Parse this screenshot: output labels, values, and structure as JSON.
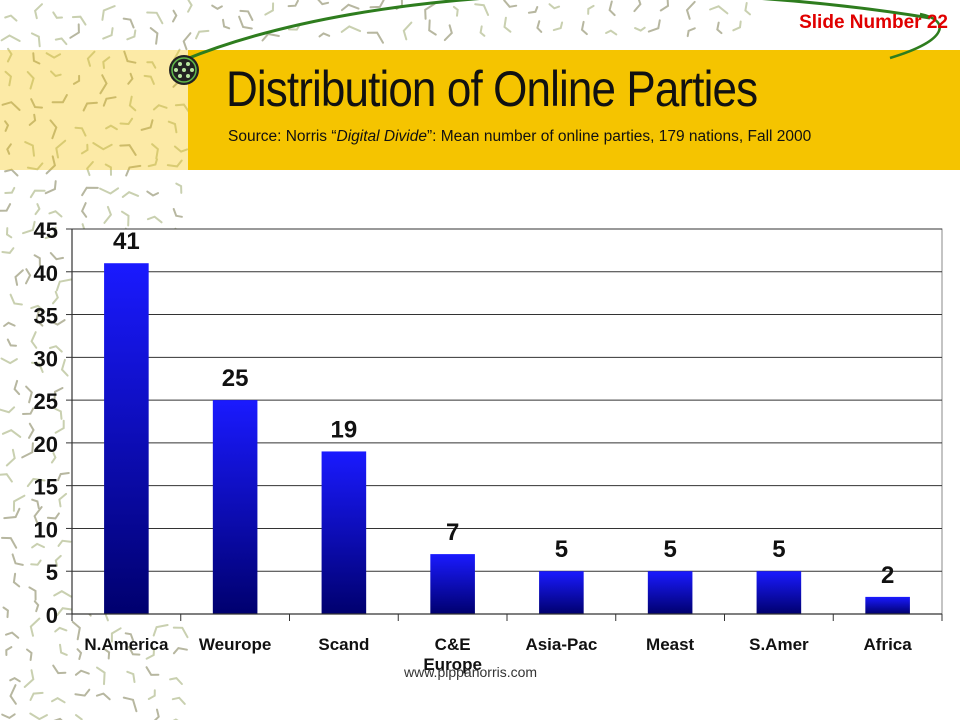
{
  "slide": {
    "slide_number_label": "Slide Number 22",
    "title": "Distribution of Online Parties",
    "source_prefix": "Source: Norris “",
    "source_italic": "Digital Divide",
    "source_suffix": "”: Mean number of online parties, 179 nations, Fall 2000",
    "footer_url": "www.pippanorris.com"
  },
  "colors": {
    "bar_top": "#1a1aff",
    "bar_bottom": "#00006e",
    "band": "#f5c400",
    "slide_number": "#e00000",
    "swoosh": "#2e7d1e"
  },
  "chart_data": {
    "type": "bar",
    "categories": [
      "N.America",
      "Weurope",
      "Scand",
      "C&E Europe",
      "Asia-Pac",
      "Meast",
      "S.Amer",
      "Africa"
    ],
    "category_lines": [
      [
        "N.America"
      ],
      [
        "Weurope"
      ],
      [
        "Scand"
      ],
      [
        "C&E",
        "Europe"
      ],
      [
        "Asia-Pac"
      ],
      [
        "Meast"
      ],
      [
        "S.Amer"
      ],
      [
        "Africa"
      ]
    ],
    "values": [
      41,
      25,
      19,
      7,
      5,
      5,
      5,
      2
    ],
    "data_labels": [
      "41",
      "25",
      "19",
      "7",
      "5",
      "5",
      "5",
      "2"
    ],
    "yticks": [
      0,
      5,
      10,
      15,
      20,
      25,
      30,
      35,
      40,
      45
    ],
    "ylim": [
      0,
      45
    ],
    "grid": true,
    "title": "",
    "xlabel": "",
    "ylabel": ""
  }
}
